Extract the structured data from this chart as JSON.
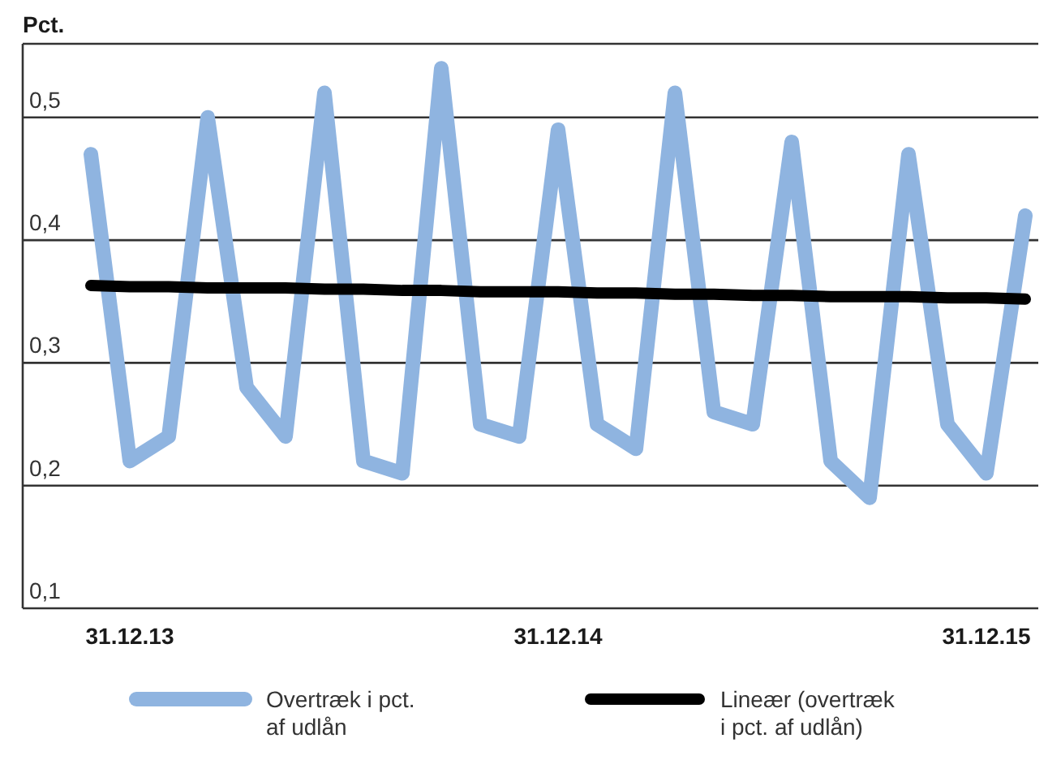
{
  "chart_data": {
    "type": "line",
    "ylabel": "Pct.",
    "categories": [
      null,
      "31.12.13",
      null,
      null,
      null,
      null,
      null,
      null,
      null,
      null,
      null,
      null,
      "31.12.14",
      null,
      null,
      null,
      null,
      null,
      null,
      null,
      null,
      null,
      null,
      "31.12.15",
      null
    ],
    "series": [
      {
        "name": "Overtræk i pct. af udlån",
        "color": "#8fb4e0",
        "values": [
          0.47,
          0.22,
          0.24,
          0.5,
          0.28,
          0.24,
          0.52,
          0.22,
          0.21,
          0.54,
          0.25,
          0.24,
          0.49,
          0.25,
          0.23,
          0.52,
          0.26,
          0.25,
          0.48,
          0.22,
          0.19,
          0.47,
          0.25,
          0.21,
          0.42
        ]
      },
      {
        "name": "Lineær (overtræk i pct. af udlån)",
        "color": "#000000",
        "values": [
          0.363,
          0.362,
          0.362,
          0.361,
          0.361,
          0.361,
          0.36,
          0.36,
          0.359,
          0.359,
          0.358,
          0.358,
          0.358,
          0.357,
          0.357,
          0.356,
          0.356,
          0.355,
          0.355,
          0.354,
          0.354,
          0.354,
          0.353,
          0.353,
          0.352
        ]
      }
    ],
    "ylim": [
      0.1,
      0.56
    ],
    "yticks": [
      {
        "value": 0.1,
        "label": "0,1"
      },
      {
        "value": 0.2,
        "label": "0,2"
      },
      {
        "value": 0.3,
        "label": "0,3"
      },
      {
        "value": 0.4,
        "label": "0,4"
      },
      {
        "value": 0.5,
        "label": "0,5"
      }
    ],
    "grid": "y",
    "legend": "bottom",
    "marker": "none",
    "line_style": "solid"
  }
}
